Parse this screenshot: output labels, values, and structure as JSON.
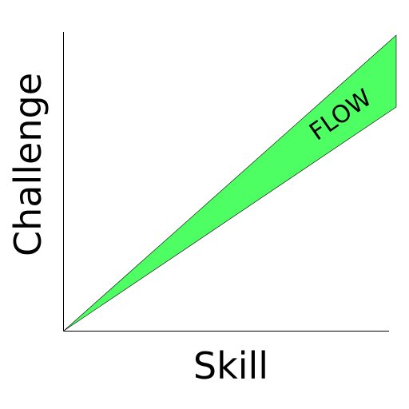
{
  "diagram": {
    "x_axis_label": "Skill",
    "y_axis_label": "Challenge",
    "region_label": "FLOW"
  },
  "colors": {
    "flow_fill": "#4dff63",
    "axis": "#000000",
    "background": "#ffffff"
  }
}
